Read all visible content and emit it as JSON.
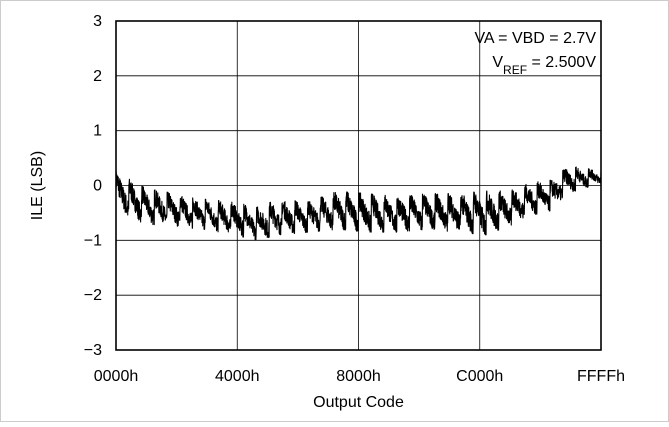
{
  "chart_data": {
    "type": "line",
    "title": "",
    "xlabel": "Output Code",
    "ylabel": "ILE (LSB)",
    "x_range": [
      0,
      65535
    ],
    "ylim": [
      -3,
      3
    ],
    "x_ticks": [
      {
        "value": 0,
        "label": "0000h"
      },
      {
        "value": 16384,
        "label": "4000h"
      },
      {
        "value": 32768,
        "label": "8000h"
      },
      {
        "value": 49152,
        "label": "C000h"
      },
      {
        "value": 65535,
        "label": "FFFFh"
      }
    ],
    "y_ticks": [
      {
        "value": 3,
        "label": "3"
      },
      {
        "value": 2,
        "label": "2"
      },
      {
        "value": 1,
        "label": "1"
      },
      {
        "value": 0,
        "label": "0"
      },
      {
        "value": -1,
        "label": "−1"
      },
      {
        "value": -2,
        "label": "−2"
      },
      {
        "value": -3,
        "label": "−3"
      }
    ],
    "grid": true,
    "annotations": {
      "line1": "VA = VBD = 2.7V",
      "line2_main": "V",
      "line2_sub": "REF",
      "line2_rest": " = 2.500V"
    },
    "series": [
      {
        "name": "",
        "color": "#000000",
        "sawtooth_segments": 38,
        "upper_envelope": [
          [
            0,
            0.25
          ],
          [
            4000,
            -0.05
          ],
          [
            8000,
            -0.15
          ],
          [
            12000,
            -0.25
          ],
          [
            16000,
            -0.3
          ],
          [
            19000,
            -0.4
          ],
          [
            22000,
            -0.25
          ],
          [
            26000,
            -0.3
          ],
          [
            30000,
            -0.1
          ],
          [
            34000,
            -0.15
          ],
          [
            38000,
            -0.2
          ],
          [
            42000,
            -0.15
          ],
          [
            46000,
            -0.15
          ],
          [
            50000,
            -0.1
          ],
          [
            53000,
            -0.1
          ],
          [
            56000,
            0.05
          ],
          [
            59000,
            0.1
          ],
          [
            61000,
            0.35
          ],
          [
            65535,
            0.3
          ]
        ],
        "lower_envelope": [
          [
            0,
            -0.5
          ],
          [
            4000,
            -0.7
          ],
          [
            8000,
            -0.75
          ],
          [
            12000,
            -0.8
          ],
          [
            16000,
            -0.9
          ],
          [
            19000,
            -1.0
          ],
          [
            22000,
            -0.9
          ],
          [
            26000,
            -0.85
          ],
          [
            30000,
            -0.8
          ],
          [
            34000,
            -0.85
          ],
          [
            38000,
            -0.85
          ],
          [
            42000,
            -0.8
          ],
          [
            46000,
            -0.85
          ],
          [
            50000,
            -0.9
          ],
          [
            53000,
            -0.75
          ],
          [
            56000,
            -0.55
          ],
          [
            59000,
            -0.45
          ],
          [
            61000,
            -0.15
          ],
          [
            65535,
            0.05
          ]
        ]
      }
    ]
  }
}
